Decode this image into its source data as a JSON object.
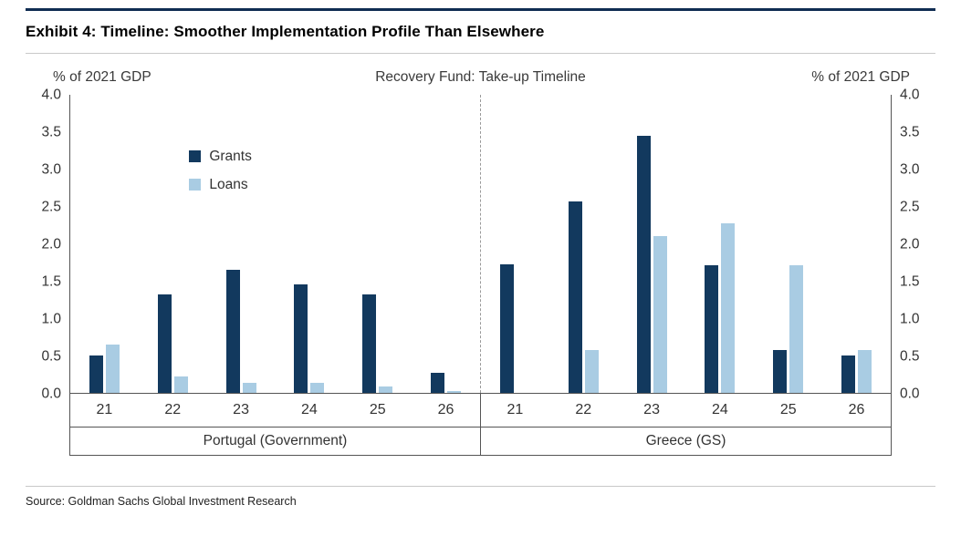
{
  "header": {
    "exhibit_title": "Exhibit 4: Timeline: Smoother Implementation Profile Than Elsewhere"
  },
  "colors": {
    "accent_rule": "#0f2c52",
    "grants": "#12395e",
    "loans": "#a9cce3"
  },
  "chart_data": {
    "type": "bar",
    "title": "Recovery Fund: Take-up Timeline",
    "ylabel_left": "% of 2021 GDP",
    "ylabel_right": "% of 2021 GDP",
    "ylim": [
      0,
      4.0
    ],
    "y_ticks": [
      "4.0",
      "3.5",
      "3.0",
      "2.5",
      "2.0",
      "1.5",
      "1.0",
      "0.5",
      "0.0"
    ],
    "grid": false,
    "legend_position": "upper-left-panel",
    "legend": [
      {
        "label": "Grants",
        "color": "#12395e"
      },
      {
        "label": "Loans",
        "color": "#a9cce3"
      }
    ],
    "panels": [
      {
        "name": "Portugal (Government)",
        "categories": [
          "21",
          "22",
          "23",
          "24",
          "25",
          "26"
        ],
        "series": [
          {
            "name": "Grants",
            "values": [
              0.5,
              1.32,
              1.65,
              1.46,
              1.32,
              0.27
            ]
          },
          {
            "name": "Loans",
            "values": [
              0.65,
              0.22,
              0.13,
              0.13,
              0.08,
              0.02
            ]
          }
        ]
      },
      {
        "name": "Greece (GS)",
        "categories": [
          "21",
          "22",
          "23",
          "24",
          "25",
          "26"
        ],
        "series": [
          {
            "name": "Grants",
            "values": [
              1.72,
              2.57,
              3.45,
              1.71,
              0.57,
              0.5
            ]
          },
          {
            "name": "Loans",
            "values": [
              0.0,
              0.57,
              2.11,
              2.28,
              1.71,
              0.57
            ]
          }
        ]
      }
    ]
  },
  "footer": {
    "source": "Source: Goldman Sachs Global Investment Research"
  }
}
